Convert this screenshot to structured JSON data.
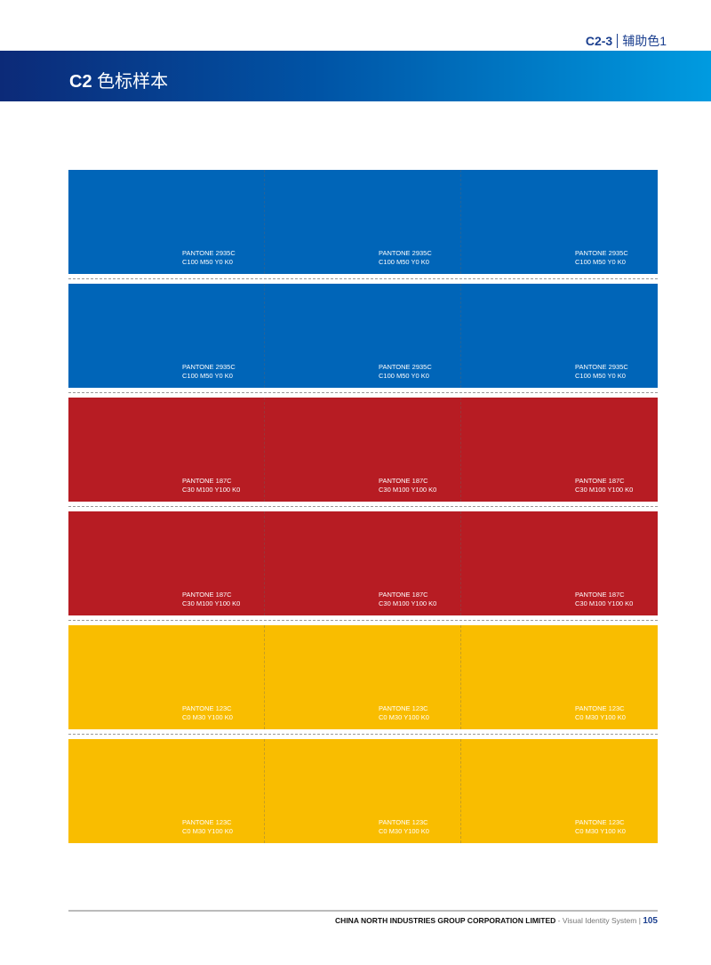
{
  "header": {
    "section_code": "C2-3",
    "section_name": "辅助色1",
    "title_code": "C2",
    "title_text": "色标样本",
    "gradient_colors": [
      "#0c2a78",
      "#0054a6",
      "#009be0"
    ]
  },
  "swatch_rows": [
    {
      "color": "#0065b8",
      "pantone": "PANTONE 2935C",
      "cmyk": "C100 M50 Y0 K0"
    },
    {
      "color": "#0065b8",
      "pantone": "PANTONE 2935C",
      "cmyk": "C100 M50 Y0 K0"
    },
    {
      "color": "#b71c23",
      "pantone": "PANTONE 187C",
      "cmyk": "C30 M100 Y100 K0"
    },
    {
      "color": "#b71c23",
      "pantone": "PANTONE 187C",
      "cmyk": "C30 M100 Y100 K0"
    },
    {
      "color": "#f9bd00",
      "pantone": "PANTONE 123C",
      "cmyk": "C0 M30 Y100 K0"
    },
    {
      "color": "#f9bd00",
      "pantone": "PANTONE 123C",
      "cmyk": "C0 M30 Y100 K0"
    }
  ],
  "footer": {
    "company": "CHINA NORTH INDUSTRIES GROUP CORPORATION LIMITED",
    "system": "- Visual Identity System",
    "separator": "|",
    "page": "105"
  }
}
